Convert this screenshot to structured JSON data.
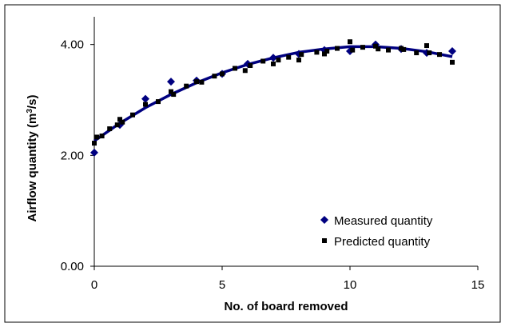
{
  "chart_data": {
    "type": "scatter",
    "title": "",
    "xlabel": "No. of board removed",
    "ylabel_main": "Airflow quantity (m",
    "ylabel_sup": "3",
    "ylabel_end": "/s)",
    "xlim": [
      0,
      15
    ],
    "ylim": [
      0,
      4.5
    ],
    "x_ticks": [
      "0",
      "5",
      "10",
      "15"
    ],
    "y_ticks": [
      "0.00",
      "2.00",
      "4.00"
    ],
    "grid": false,
    "legend_position": "bottom-right",
    "series": [
      {
        "name": "Measured quantity",
        "marker": "diamond",
        "color": "#000080",
        "points": [
          [
            0,
            2.05
          ],
          [
            1,
            2.55
          ],
          [
            2,
            3.02
          ],
          [
            3,
            3.33
          ],
          [
            4,
            3.35
          ],
          [
            5,
            3.47
          ],
          [
            6,
            3.65
          ],
          [
            7,
            3.76
          ],
          [
            8,
            3.83
          ],
          [
            9,
            3.9
          ],
          [
            10,
            3.88
          ],
          [
            11,
            4.0
          ],
          [
            12,
            3.92
          ],
          [
            13,
            3.85
          ],
          [
            14,
            3.88
          ]
        ]
      },
      {
        "name": "Predicted quantity",
        "marker": "square",
        "color": "#000000",
        "points": [
          [
            0,
            2.22
          ],
          [
            0.1,
            2.33
          ],
          [
            0.3,
            2.35
          ],
          [
            0.6,
            2.48
          ],
          [
            0.9,
            2.55
          ],
          [
            1.0,
            2.65
          ],
          [
            1.1,
            2.6
          ],
          [
            1.5,
            2.73
          ],
          [
            2.0,
            2.92
          ],
          [
            2.5,
            2.97
          ],
          [
            3.0,
            3.15
          ],
          [
            3.1,
            3.1
          ],
          [
            3.6,
            3.25
          ],
          [
            4.0,
            3.33
          ],
          [
            4.2,
            3.32
          ],
          [
            4.7,
            3.43
          ],
          [
            5.0,
            3.47
          ],
          [
            5.5,
            3.57
          ],
          [
            5.9,
            3.53
          ],
          [
            6.1,
            3.62
          ],
          [
            6.6,
            3.7
          ],
          [
            7.0,
            3.65
          ],
          [
            7.2,
            3.72
          ],
          [
            7.6,
            3.77
          ],
          [
            8.0,
            3.72
          ],
          [
            8.1,
            3.82
          ],
          [
            8.7,
            3.86
          ],
          [
            9.0,
            3.83
          ],
          [
            9.1,
            3.88
          ],
          [
            9.5,
            3.93
          ],
          [
            10.0,
            4.05
          ],
          [
            10.1,
            3.9
          ],
          [
            10.5,
            3.95
          ],
          [
            11.0,
            3.97
          ],
          [
            11.1,
            3.92
          ],
          [
            11.5,
            3.9
          ],
          [
            12.0,
            3.93
          ],
          [
            12.1,
            3.91
          ],
          [
            12.6,
            3.85
          ],
          [
            13.0,
            3.98
          ],
          [
            13.1,
            3.85
          ],
          [
            13.5,
            3.82
          ],
          [
            14.0,
            3.68
          ]
        ]
      }
    ],
    "trendline": {
      "color": "#000080",
      "points": [
        [
          0,
          2.26
        ],
        [
          1,
          2.58
        ],
        [
          2,
          2.86
        ],
        [
          3,
          3.1
        ],
        [
          4,
          3.31
        ],
        [
          5,
          3.49
        ],
        [
          6,
          3.64
        ],
        [
          7,
          3.76
        ],
        [
          8,
          3.86
        ],
        [
          9,
          3.92
        ],
        [
          10,
          3.96
        ],
        [
          11,
          3.96
        ],
        [
          12,
          3.93
        ],
        [
          13,
          3.87
        ],
        [
          14,
          3.78
        ]
      ]
    }
  }
}
